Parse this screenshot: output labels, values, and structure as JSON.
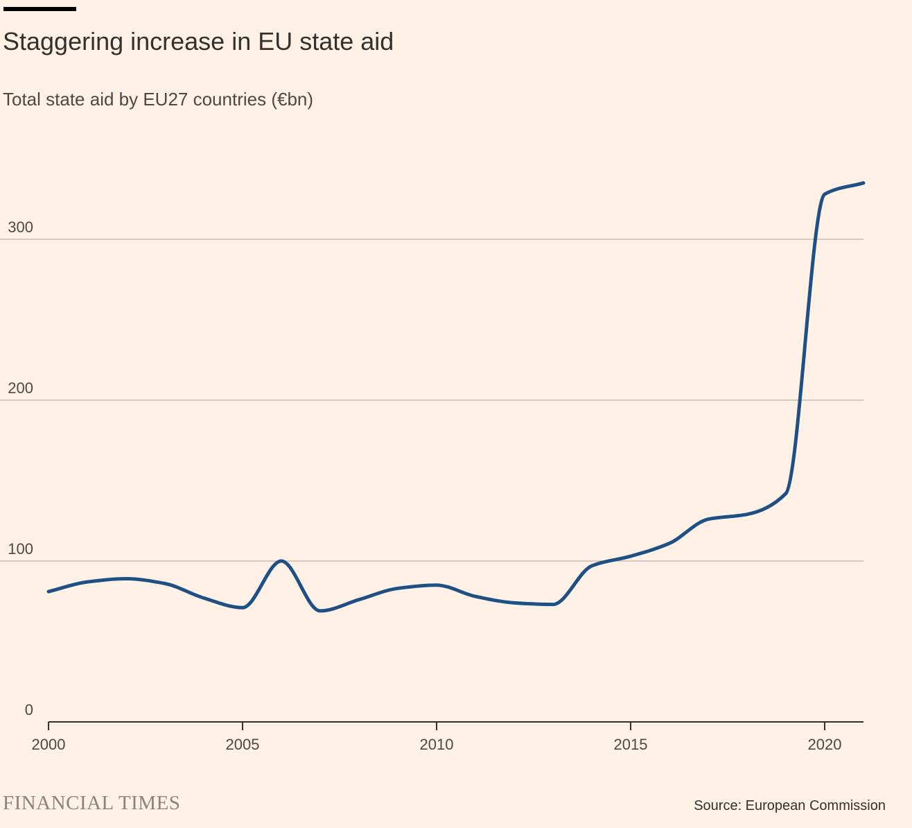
{
  "header": {
    "title": "Staggering increase in EU state aid",
    "subtitle": "Total state aid by EU27 countries (€bn)"
  },
  "footer": {
    "brand": "FINANCIAL TIMES",
    "source": "Source: European Commission"
  },
  "colors": {
    "line": "#1f5085",
    "grid": "#c7bdb4",
    "axis": "#33302e",
    "background": "#fff1e5"
  },
  "chart_data": {
    "type": "line",
    "title": "Staggering increase in EU state aid",
    "subtitle": "Total state aid by EU27 countries (€bn)",
    "xlabel": "",
    "ylabel": "",
    "xlim": [
      2000,
      2021
    ],
    "ylim": [
      0,
      340
    ],
    "grid": "horizontal",
    "legend": "none",
    "x_ticks": [
      2000,
      2005,
      2010,
      2015,
      2020
    ],
    "y_ticks": [
      0,
      100,
      200,
      300
    ],
    "series": [
      {
        "x": [
          2000,
          2001,
          2002,
          2003,
          2004,
          2005,
          2006,
          2007,
          2008,
          2009,
          2010,
          2011,
          2012,
          2013,
          2014,
          2015,
          2016,
          2017,
          2018,
          2019,
          2020,
          2021
        ],
        "values": [
          81,
          87,
          89,
          86,
          77,
          71,
          100,
          69,
          76,
          83,
          85,
          78,
          74,
          73,
          97,
          103,
          111,
          126,
          129,
          142,
          328,
          335
        ]
      }
    ]
  }
}
